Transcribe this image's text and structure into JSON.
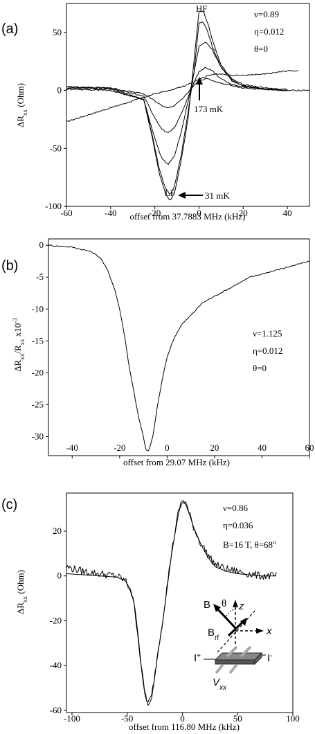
{
  "chart_data": [
    {
      "type": "line",
      "panel_label": "(a)",
      "xlabel": "offset from 37.7883 MHz (kHz)",
      "ylabel": "ΔR",
      "ylabel_sub": "xx",
      "ylabel_unit": " (Ohm)",
      "xlim": [
        -60,
        50
      ],
      "ylim": [
        -100,
        75
      ],
      "xticks": [
        -60,
        -40,
        -20,
        0,
        20,
        40
      ],
      "yticks": [
        -100,
        -50,
        0,
        50
      ],
      "params": [
        "ν=0.89",
        "η=0.012",
        "θ=0"
      ],
      "annotations": {
        "hf": "HF",
        "lf": "LF",
        "high_temp": "173 mK",
        "low_temp": "31 mK"
      },
      "series": [
        {
          "x": [
            -60,
            -50,
            -40,
            -30,
            -25,
            -20,
            -16,
            -13,
            -10,
            -6,
            -3,
            0,
            3,
            6,
            10,
            15,
            20,
            30,
            40,
            45
          ],
          "y": [
            -27,
            -21,
            -15,
            -9,
            -6,
            -3,
            -1,
            0,
            2,
            4,
            7,
            10,
            12,
            14,
            14,
            13,
            13,
            14,
            17,
            17
          ]
        },
        {
          "x": [
            -60,
            -40,
            -25,
            -20,
            -17,
            -14,
            -11,
            -8,
            -5,
            -2,
            0,
            3,
            6,
            10,
            15,
            20,
            30,
            40,
            50
          ],
          "y": [
            3,
            2,
            -3,
            -9,
            -13,
            -15,
            -13,
            -8,
            -2,
            5,
            8,
            10,
            9,
            6,
            4,
            2,
            1,
            0,
            0
          ]
        },
        {
          "x": [
            -60,
            -40,
            -25,
            -21,
            -17,
            -14,
            -11,
            -8,
            -5,
            -2,
            0,
            3,
            6,
            10,
            15,
            20,
            30,
            40
          ],
          "y": [
            3,
            2,
            -5,
            -20,
            -33,
            -37,
            -32,
            -20,
            -6,
            8,
            16,
            20,
            17,
            10,
            5,
            3,
            1,
            0
          ]
        },
        {
          "x": [
            -60,
            -40,
            -25,
            -21,
            -17,
            -14,
            -11,
            -8,
            -5,
            -2,
            0,
            3,
            6,
            10,
            15,
            20,
            30,
            40
          ],
          "y": [
            3,
            2,
            -8,
            -35,
            -58,
            -64,
            -56,
            -35,
            -10,
            18,
            38,
            42,
            35,
            20,
            10,
            5,
            2,
            1
          ]
        },
        {
          "x": [
            -60,
            -40,
            -25,
            -21,
            -18,
            -15,
            -13,
            -11,
            -8,
            -5,
            -2,
            0,
            2,
            4,
            6,
            10,
            15,
            20,
            30,
            40
          ],
          "y": [
            2,
            1,
            -8,
            -40,
            -68,
            -85,
            -90,
            -82,
            -55,
            -20,
            20,
            58,
            59,
            50,
            38,
            20,
            8,
            4,
            1,
            0
          ]
        },
        {
          "x": [
            -60,
            -40,
            -25,
            -21,
            -18,
            -15,
            -13,
            -11,
            -8,
            -5,
            -2,
            0,
            2,
            4,
            6,
            10,
            15,
            20,
            30,
            40
          ],
          "y": [
            1,
            0,
            -8,
            -42,
            -72,
            -90,
            -95,
            -88,
            -60,
            -25,
            30,
            68,
            68,
            58,
            44,
            22,
            9,
            4,
            1,
            0
          ]
        }
      ]
    },
    {
      "type": "line",
      "panel_label": "(b)",
      "xlabel": "offset from 29.07 MHz (kHz)",
      "ylabel": "ΔR",
      "ylabel_sub": "xx",
      "ylabel_mid": "/R",
      "ylabel_sub2": "xx",
      "ylabel_unit": " x10",
      "ylabel_exp": "-3",
      "xlim": [
        -50,
        60
      ],
      "ylim": [
        -33,
        1
      ],
      "xticks": [
        -40,
        -20,
        0,
        20,
        40,
        60
      ],
      "yticks": [
        -30,
        -25,
        -20,
        -15,
        -10,
        -5,
        0
      ],
      "params": [
        "ν=1.125",
        "η=0.012",
        "θ=0"
      ],
      "series": [
        {
          "x": [
            -50,
            -40,
            -32,
            -28,
            -25,
            -22,
            -20,
            -18,
            -16,
            -14,
            -12,
            -10,
            -9,
            -8,
            -6,
            -4,
            -2,
            0,
            3,
            6,
            10,
            15,
            20,
            25,
            30,
            35,
            40,
            45,
            50,
            55,
            60
          ],
          "y": [
            0,
            -0.3,
            -1,
            -2,
            -4,
            -7,
            -10,
            -14,
            -19,
            -23,
            -27,
            -30,
            -32,
            -32.5,
            -30,
            -25,
            -21,
            -17.5,
            -14.5,
            -12.5,
            -11,
            -9,
            -8,
            -7,
            -6,
            -5,
            -4.5,
            -4,
            -3.5,
            -3,
            -2.5
          ]
        }
      ]
    },
    {
      "type": "line",
      "panel_label": "(c)",
      "xlabel": "offset from 116.80 MHz (kHz)",
      "ylabel": "ΔR",
      "ylabel_sub": "xx",
      "ylabel_unit": " (Ohm)",
      "xlim": [
        -105,
        100
      ],
      "ylim": [
        -61,
        37
      ],
      "xticks": [
        -100,
        -50,
        0,
        50,
        100
      ],
      "yticks": [
        -60,
        -40,
        -20,
        0,
        20
      ],
      "params": [
        "ν=0.86",
        "η=0.036"
      ],
      "param_field": "B=16 T, θ=68",
      "param_field_sup": "o",
      "inset": {
        "b": "B",
        "theta": "θ",
        "z": "z",
        "brf": "B",
        "brf_sub": "rf",
        "x": "x",
        "iplus": "I",
        "iplus_sup": "+",
        "iminus": "I",
        "iminus_sup": "-",
        "vxx": "V",
        "vxx_sub": "xx"
      },
      "series": [
        {
          "x": [
            -105,
            -90,
            -75,
            -60,
            -52,
            -47,
            -43,
            -40,
            -37,
            -34,
            -31,
            -28,
            -25,
            -22,
            -18,
            -14,
            -10,
            -6,
            -3,
            0,
            3,
            6,
            10,
            15,
            20,
            25,
            30,
            40,
            50,
            60,
            70,
            85
          ],
          "y": [
            4,
            2,
            1,
            0,
            -2,
            -6,
            -15,
            -28,
            -42,
            -52,
            -57,
            -54,
            -44,
            -33,
            -20,
            -5,
            10,
            22,
            30,
            34,
            33,
            28,
            22,
            16,
            12,
            8,
            5,
            3,
            2,
            1,
            0,
            0
          ]
        },
        {
          "x": [
            -105,
            -90,
            -75,
            -60,
            -52,
            -47,
            -43,
            -40,
            -37,
            -34,
            -31,
            -28,
            -25,
            -22,
            -18,
            -14,
            -10,
            -6,
            -3,
            0,
            3,
            6,
            10,
            15,
            20,
            25,
            30,
            40,
            50,
            60,
            70,
            85
          ],
          "y": [
            1,
            0.5,
            0,
            -0.5,
            -2,
            -6,
            -14,
            -27,
            -42,
            -53,
            -58,
            -55,
            -45,
            -34,
            -21,
            -6,
            9,
            21,
            29,
            33,
            32,
            28,
            22,
            16,
            11,
            7,
            4,
            2,
            1,
            0.5,
            0,
            0
          ]
        }
      ]
    }
  ]
}
